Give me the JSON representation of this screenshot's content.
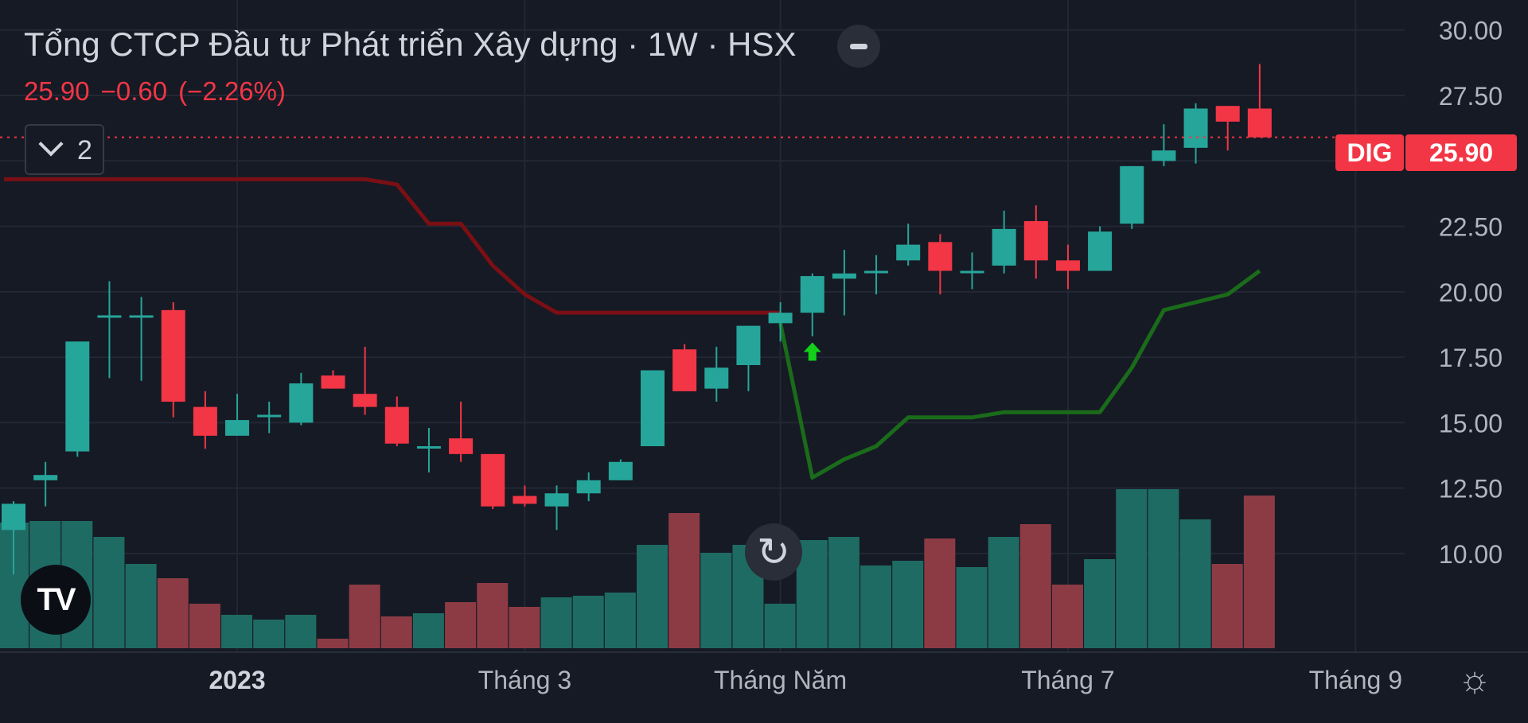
{
  "header": {
    "title": "Tổng CTCP Đầu tư Phát triển Xây dựng · 1W · HSX",
    "price": "25.90",
    "change": "−0.60",
    "change_pct": "(−2.26%)",
    "indicators_count": "2",
    "toggle_icon": "minus-icon"
  },
  "price_tag": {
    "symbol": "DIG",
    "price": "25.90"
  },
  "colors": {
    "up": "#26a69a",
    "down": "#f23645",
    "volume_up": "#1e6b63",
    "volume_down": "#8c3b45",
    "resistance_line": "#7a0f14",
    "support_line": "#1a6b1a",
    "buy_signal": "#12d01a",
    "background": "#161a25"
  },
  "icons": {
    "logo": "tradingview-logo",
    "reset": "reset-icon",
    "settings": "settings-icon",
    "signal": "up-arrow-icon"
  },
  "logo_text": "TV",
  "chart_data": {
    "type": "candlestick",
    "interval": "1W",
    "ylim": [
      8.6,
      30.6
    ],
    "y_ticks": [
      "30.00",
      "27.50",
      "25.00",
      "22.50",
      "20.00",
      "17.50",
      "15.00",
      "12.50",
      "10.00"
    ],
    "y_tick_values": [
      30,
      27.5,
      25,
      22.5,
      20,
      17.5,
      15,
      12.5,
      10
    ],
    "x_labels": [
      {
        "label": "2023",
        "bold": true,
        "index": 7
      },
      {
        "label": "Tháng 3",
        "bold": false,
        "index": 16
      },
      {
        "label": "Tháng Năm",
        "bold": false,
        "index": 24
      },
      {
        "label": "Tháng 7",
        "bold": false,
        "index": 33
      },
      {
        "label": "Tháng 9",
        "bold": false,
        "index": 42
      }
    ],
    "grid": true,
    "last_price": 25.9,
    "candles": [
      {
        "o": 10.9,
        "h": 12.0,
        "l": 9.2,
        "c": 11.9
      },
      {
        "o": 12.8,
        "h": 13.5,
        "l": 11.8,
        "c": 13.0
      },
      {
        "o": 13.9,
        "h": 18.1,
        "l": 13.7,
        "c": 18.1
      },
      {
        "o": 19.1,
        "h": 20.4,
        "l": 16.7,
        "c": 19.1
      },
      {
        "o": 19.1,
        "h": 19.8,
        "l": 16.6,
        "c": 19.1
      },
      {
        "o": 19.3,
        "h": 19.6,
        "l": 15.2,
        "c": 15.8
      },
      {
        "o": 15.6,
        "h": 16.2,
        "l": 14.0,
        "c": 14.5
      },
      {
        "o": 14.5,
        "h": 16.1,
        "l": 14.5,
        "c": 15.1
      },
      {
        "o": 15.3,
        "h": 15.8,
        "l": 14.6,
        "c": 15.3
      },
      {
        "o": 15.0,
        "h": 16.9,
        "l": 14.9,
        "c": 16.5
      },
      {
        "o": 16.8,
        "h": 17.0,
        "l": 16.3,
        "c": 16.3
      },
      {
        "o": 16.1,
        "h": 17.9,
        "l": 15.3,
        "c": 15.6
      },
      {
        "o": 15.6,
        "h": 16.0,
        "l": 14.1,
        "c": 14.2
      },
      {
        "o": 14.1,
        "h": 14.8,
        "l": 13.1,
        "c": 14.1
      },
      {
        "o": 14.4,
        "h": 15.8,
        "l": 13.5,
        "c": 13.8
      },
      {
        "o": 13.8,
        "h": 13.8,
        "l": 11.7,
        "c": 11.8
      },
      {
        "o": 12.2,
        "h": 12.6,
        "l": 11.8,
        "c": 11.9
      },
      {
        "o": 11.8,
        "h": 12.6,
        "l": 10.9,
        "c": 12.3
      },
      {
        "o": 12.3,
        "h": 13.1,
        "l": 12.0,
        "c": 12.8
      },
      {
        "o": 12.8,
        "h": 13.6,
        "l": 12.8,
        "c": 13.5
      },
      {
        "o": 14.1,
        "h": 17.0,
        "l": 14.1,
        "c": 17.0
      },
      {
        "o": 17.8,
        "h": 18.0,
        "l": 16.2,
        "c": 16.2
      },
      {
        "o": 16.3,
        "h": 17.9,
        "l": 15.8,
        "c": 17.1
      },
      {
        "o": 17.2,
        "h": 18.7,
        "l": 16.2,
        "c": 18.7
      },
      {
        "o": 18.8,
        "h": 19.6,
        "l": 18.1,
        "c": 19.2
      },
      {
        "o": 19.2,
        "h": 20.7,
        "l": 18.3,
        "c": 20.6
      },
      {
        "o": 20.5,
        "h": 21.6,
        "l": 19.1,
        "c": 20.7
      },
      {
        "o": 20.8,
        "h": 21.4,
        "l": 19.9,
        "c": 20.8
      },
      {
        "o": 21.2,
        "h": 22.6,
        "l": 21.0,
        "c": 21.8
      },
      {
        "o": 21.9,
        "h": 22.2,
        "l": 19.9,
        "c": 20.8
      },
      {
        "o": 20.8,
        "h": 21.5,
        "l": 20.1,
        "c": 20.8
      },
      {
        "o": 21.0,
        "h": 23.1,
        "l": 20.7,
        "c": 22.4
      },
      {
        "o": 22.7,
        "h": 23.3,
        "l": 20.5,
        "c": 21.2
      },
      {
        "o": 21.2,
        "h": 21.8,
        "l": 20.1,
        "c": 20.8
      },
      {
        "o": 20.8,
        "h": 22.5,
        "l": 20.8,
        "c": 22.3
      },
      {
        "o": 22.6,
        "h": 24.8,
        "l": 22.4,
        "c": 24.8
      },
      {
        "o": 25.0,
        "h": 26.4,
        "l": 24.8,
        "c": 25.4
      },
      {
        "o": 25.5,
        "h": 27.2,
        "l": 24.9,
        "c": 27.0
      },
      {
        "o": 27.1,
        "h": 27.1,
        "l": 25.4,
        "c": 26.5
      },
      {
        "o": 27.0,
        "h": 28.7,
        "l": 25.9,
        "c": 25.9
      }
    ],
    "volume_relative": [
      0.79,
      0.8,
      0.8,
      0.7,
      0.53,
      0.44,
      0.28,
      0.21,
      0.18,
      0.21,
      0.06,
      0.4,
      0.2,
      0.22,
      0.29,
      0.41,
      0.26,
      0.32,
      0.33,
      0.35,
      0.65,
      0.85,
      0.6,
      0.65,
      0.28,
      0.68,
      0.7,
      0.52,
      0.55,
      0.69,
      0.51,
      0.7,
      0.78,
      0.4,
      0.56,
      1.0,
      1.0,
      0.81,
      0.53,
      0.96
    ],
    "resistance_line": [
      {
        "i": -0.3,
        "v": 24.3
      },
      {
        "i": 11.0,
        "v": 24.3
      },
      {
        "i": 12.0,
        "v": 24.1
      },
      {
        "i": 13.0,
        "v": 22.6
      },
      {
        "i": 14.0,
        "v": 22.6
      },
      {
        "i": 15.0,
        "v": 21.0
      },
      {
        "i": 16.0,
        "v": 19.9
      },
      {
        "i": 17.0,
        "v": 19.2
      },
      {
        "i": 24.0,
        "v": 19.2
      }
    ],
    "support_line": [
      {
        "i": 24.0,
        "v": 18.8
      },
      {
        "i": 25.0,
        "v": 12.9
      },
      {
        "i": 26.0,
        "v": 13.6
      },
      {
        "i": 27.0,
        "v": 14.1
      },
      {
        "i": 28.0,
        "v": 15.2
      },
      {
        "i": 30.0,
        "v": 15.2
      },
      {
        "i": 31.0,
        "v": 15.4
      },
      {
        "i": 34.0,
        "v": 15.4
      },
      {
        "i": 35.0,
        "v": 17.1
      },
      {
        "i": 36.0,
        "v": 19.3
      },
      {
        "i": 37.0,
        "v": 19.6
      },
      {
        "i": 38.0,
        "v": 19.9
      },
      {
        "i": 39.0,
        "v": 20.8
      }
    ],
    "signals": [
      {
        "type": "buy",
        "i": 25,
        "v": 17.7
      }
    ]
  }
}
